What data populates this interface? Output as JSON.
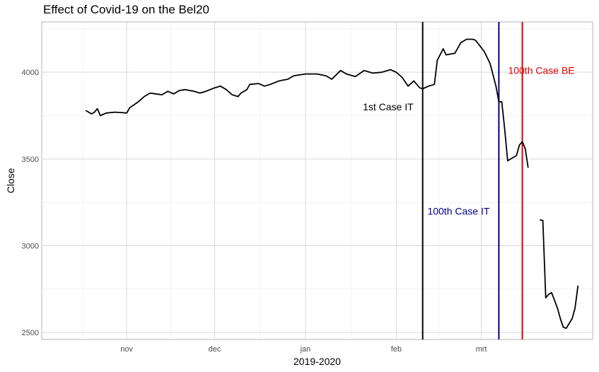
{
  "chart_data": {
    "type": "line",
    "title": "Effect of Covid-19 on the Bel20",
    "xlabel": "2019-2020",
    "ylabel": "Close",
    "x_range": [
      "2019-10-03",
      "2020-04-08"
    ],
    "ylim": [
      2460,
      4290
    ],
    "x_ticks": [
      {
        "label": "nov",
        "date": "2019-11-01"
      },
      {
        "label": "dec",
        "date": "2019-12-01"
      },
      {
        "label": "jan",
        "date": "2020-01-01"
      },
      {
        "label": "feb",
        "date": "2020-02-01"
      },
      {
        "label": "mrt",
        "date": "2020-03-01"
      }
    ],
    "y_ticks": [
      2500,
      3000,
      3500,
      4000
    ],
    "grid": true,
    "series": [
      {
        "color": "#000000",
        "points": [
          [
            "2019-10-18",
            3780
          ],
          [
            "2019-10-20",
            3760
          ],
          [
            "2019-10-21",
            3770
          ],
          [
            "2019-10-22",
            3790
          ],
          [
            "2019-10-23",
            3750
          ],
          [
            "2019-10-25",
            3765
          ],
          [
            "2019-10-28",
            3770
          ],
          [
            "2019-10-30",
            3768
          ],
          [
            "2019-11-01",
            3765
          ],
          [
            "2019-11-02",
            3795
          ],
          [
            "2019-11-05",
            3830
          ],
          [
            "2019-11-07",
            3860
          ],
          [
            "2019-11-09",
            3880
          ],
          [
            "2019-11-11",
            3875
          ],
          [
            "2019-11-13",
            3870
          ],
          [
            "2019-11-15",
            3890
          ],
          [
            "2019-11-17",
            3875
          ],
          [
            "2019-11-19",
            3895
          ],
          [
            "2019-11-21",
            3900
          ],
          [
            "2019-11-24",
            3890
          ],
          [
            "2019-11-26",
            3880
          ],
          [
            "2019-11-28",
            3890
          ],
          [
            "2019-12-01",
            3910
          ],
          [
            "2019-12-03",
            3920
          ],
          [
            "2019-12-05",
            3900
          ],
          [
            "2019-12-07",
            3870
          ],
          [
            "2019-12-09",
            3860
          ],
          [
            "2019-12-10",
            3880
          ],
          [
            "2019-12-12",
            3900
          ],
          [
            "2019-12-13",
            3930
          ],
          [
            "2019-12-16",
            3935
          ],
          [
            "2019-12-18",
            3920
          ],
          [
            "2019-12-20",
            3930
          ],
          [
            "2019-12-23",
            3950
          ],
          [
            "2019-12-26",
            3960
          ],
          [
            "2019-12-28",
            3980
          ],
          [
            "2020-01-01",
            3990
          ],
          [
            "2020-01-05",
            3990
          ],
          [
            "2020-01-08",
            3980
          ],
          [
            "2020-01-10",
            3960
          ],
          [
            "2020-01-13",
            4010
          ],
          [
            "2020-01-15",
            3990
          ],
          [
            "2020-01-18",
            3975
          ],
          [
            "2020-01-21",
            4010
          ],
          [
            "2020-01-24",
            3995
          ],
          [
            "2020-01-27",
            4000
          ],
          [
            "2020-01-30",
            4015
          ],
          [
            "2020-02-01",
            4000
          ],
          [
            "2020-02-03",
            3970
          ],
          [
            "2020-02-05",
            3920
          ],
          [
            "2020-02-07",
            3950
          ],
          [
            "2020-02-09",
            3910
          ],
          [
            "2020-02-10",
            3905
          ],
          [
            "2020-02-12",
            3920
          ],
          [
            "2020-02-14",
            3930
          ],
          [
            "2020-02-15",
            4070
          ],
          [
            "2020-02-17",
            4135
          ],
          [
            "2020-02-18",
            4100
          ],
          [
            "2020-02-21",
            4110
          ],
          [
            "2020-02-23",
            4170
          ],
          [
            "2020-02-25",
            4190
          ],
          [
            "2020-02-27",
            4190
          ],
          [
            "2020-02-28",
            4185
          ],
          [
            "2020-03-02",
            4120
          ],
          [
            "2020-03-04",
            4050
          ],
          [
            "2020-03-06",
            3920
          ],
          [
            "2020-03-07",
            3830
          ],
          [
            "2020-03-08",
            3830
          ],
          [
            "2020-03-09",
            3670
          ],
          [
            "2020-03-10",
            3490
          ],
          [
            "2020-03-12",
            3510
          ],
          [
            "2020-03-13",
            3520
          ],
          [
            "2020-03-14",
            3580
          ],
          [
            "2020-03-15",
            3600
          ],
          [
            "2020-03-16",
            3560
          ],
          [
            "2020-03-17",
            3450
          ],
          null,
          [
            "2020-03-21",
            3150
          ],
          [
            "2020-03-22",
            3145
          ],
          [
            "2020-03-23",
            2700
          ],
          [
            "2020-03-24",
            2720
          ],
          [
            "2020-03-25",
            2730
          ],
          [
            "2020-03-27",
            2640
          ],
          [
            "2020-03-28",
            2580
          ],
          [
            "2020-03-29",
            2530
          ],
          [
            "2020-03-30",
            2525
          ],
          [
            "2020-04-01",
            2580
          ],
          [
            "2020-04-02",
            2640
          ],
          [
            "2020-04-03",
            2770
          ]
        ]
      }
    ],
    "vlines": [
      {
        "date": "2020-02-10",
        "color": "#000000",
        "label": "1st Case IT",
        "label_y": 3780,
        "label_anchor": "end"
      },
      {
        "date": "2020-03-07",
        "color": "#00008B",
        "label": "100th Case IT",
        "label_y": 3180,
        "label_anchor": "end"
      },
      {
        "date": "2020-03-15",
        "color": "#E00000",
        "label": "100th Case BE",
        "label_y": 3990,
        "label_anchor": "middle"
      }
    ]
  }
}
